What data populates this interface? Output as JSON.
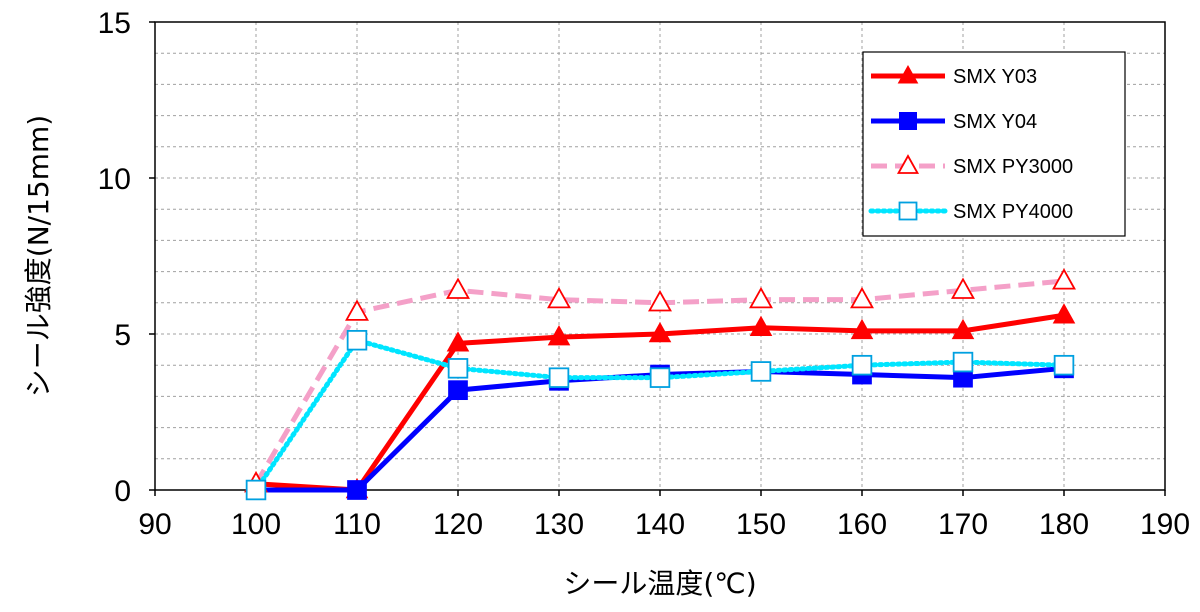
{
  "chart_data": {
    "type": "line",
    "title": "",
    "xlabel": "シール温度(℃)",
    "ylabel": "シール強度(N/15mm)",
    "xlim": [
      90,
      190
    ],
    "ylim": [
      0,
      15
    ],
    "x_ticks": [
      90,
      100,
      110,
      120,
      130,
      140,
      150,
      160,
      170,
      180,
      190
    ],
    "y_ticks": [
      0,
      5,
      10,
      15
    ],
    "grid": true,
    "legend_position": "top-right",
    "x": [
      100,
      110,
      120,
      130,
      140,
      150,
      160,
      170,
      180
    ],
    "series": [
      {
        "name": "SMX Y03",
        "values": [
          0.2,
          0,
          4.7,
          4.9,
          5.0,
          5.2,
          5.1,
          5.1,
          5.6
        ],
        "color": "#ff0000",
        "line_style": "solid",
        "marker": "triangle-filled"
      },
      {
        "name": "SMX Y04",
        "values": [
          0,
          0,
          3.2,
          3.5,
          3.7,
          3.8,
          3.7,
          3.6,
          3.9
        ],
        "color": "#0000ff",
        "line_style": "solid",
        "marker": "square-filled"
      },
      {
        "name": "SMX PY3000",
        "values": [
          0.2,
          5.7,
          6.4,
          6.1,
          6.0,
          6.1,
          6.1,
          6.4,
          6.7
        ],
        "color": "#f4a0c8",
        "marker_color": "#ff0000",
        "line_style": "dashed",
        "marker": "triangle-open"
      },
      {
        "name": "SMX PY4000",
        "values": [
          0,
          4.8,
          3.9,
          3.6,
          3.6,
          3.8,
          4.0,
          4.1,
          4.0
        ],
        "color": "#00e5ff",
        "marker_color": "#00a0e0",
        "line_style": "dotted",
        "marker": "square-open"
      }
    ]
  }
}
